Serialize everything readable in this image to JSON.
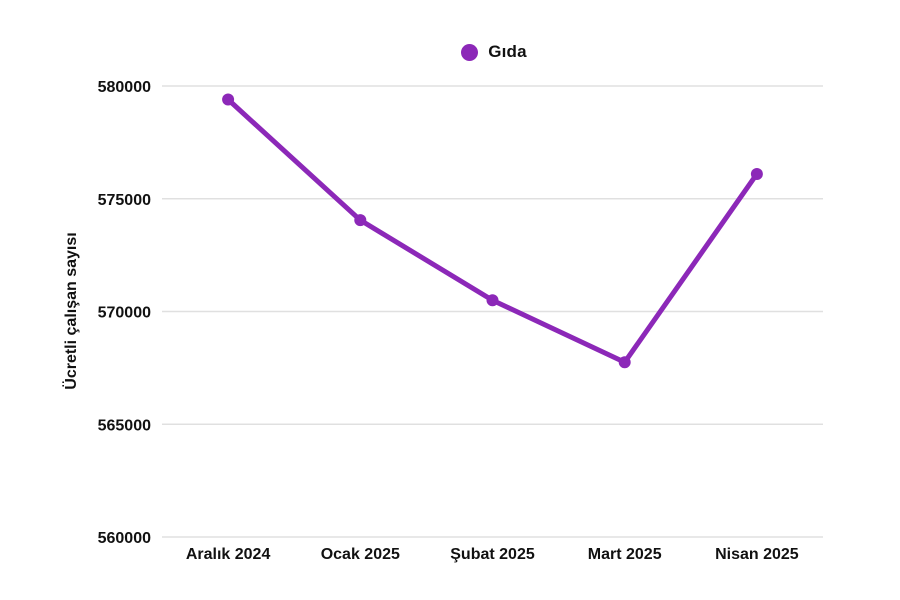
{
  "chart_data": {
    "type": "line",
    "title": "",
    "categories": [
      "Aralık 2024",
      "Ocak 2025",
      "Şubat 2025",
      "Mart 2025",
      "Nisan 2025"
    ],
    "series": [
      {
        "name": "Gıda",
        "color": "#8C28B8",
        "values": [
          579400,
          574050,
          570500,
          567750,
          576100
        ]
      }
    ],
    "xlabel": "",
    "ylabel": "Ücretli çalışan sayısı",
    "ylim": [
      560000,
      580000
    ],
    "yticks": [
      560000,
      565000,
      570000,
      575000,
      580000
    ],
    "grid": true,
    "legend_position": "top-center",
    "marker": "circle",
    "line_width": 5,
    "marker_radius": 6
  },
  "colors": {
    "line": "#8C28B8",
    "grid": "#e0e0e0",
    "text": "#111111",
    "background": "#ffffff"
  }
}
